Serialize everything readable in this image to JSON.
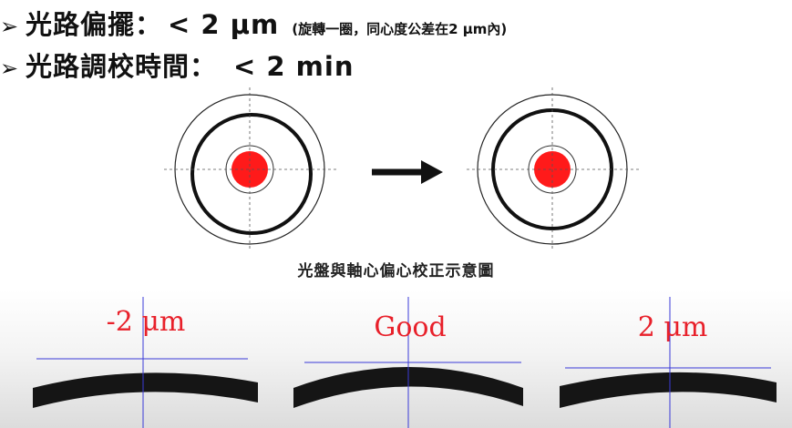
{
  "header": {
    "bullet_symbol": "➢",
    "line1": {
      "label": "光路偏擺：",
      "value": "< 2 μm",
      "note": "(旋轉一圈，同心度公差在2 μm內)"
    },
    "line2": {
      "label": "光路調校時間：",
      "value": "< 2 min"
    }
  },
  "diagram": {
    "caption": "光盤與軸心偏心校正示意圖",
    "before": {
      "dot_color": "#ff1a1a",
      "ring_color": "#111111"
    },
    "after": {
      "dot_color": "#ff1a1a",
      "ring_color": "#111111"
    },
    "arrow": {
      "direction": "right"
    }
  },
  "lens_alignment": [
    {
      "label": "-2 μm",
      "state": "offset-left"
    },
    {
      "label": "Good",
      "state": "centered"
    },
    {
      "label": "2 μm",
      "state": "offset-right"
    }
  ],
  "colors": {
    "crosshair": "#3a3ad8",
    "label": "#e8202a",
    "lens": "#151515"
  }
}
